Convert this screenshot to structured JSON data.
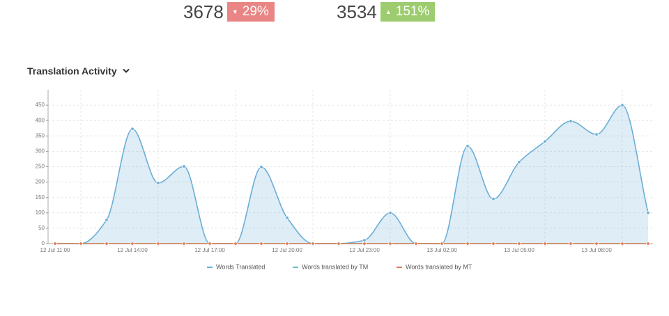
{
  "stats": [
    {
      "value": "3678",
      "change": "29%",
      "direction": "down"
    },
    {
      "value": "3534",
      "change": "151%",
      "direction": "up"
    }
  ],
  "chart_data": {
    "type": "line",
    "title": "Translation Activity",
    "categories": [
      "12 Jul 11:00",
      null,
      null,
      "12 Jul 14:00",
      null,
      null,
      "12 Jul 17:00",
      null,
      null,
      "12 Jul 20:00",
      null,
      null,
      "12 Jul 23:00",
      null,
      null,
      "13 Jul 02:00",
      null,
      null,
      "13 Jul 05:00",
      null,
      null,
      "13 Jul 08:00",
      null,
      null
    ],
    "series": [
      {
        "name": "Words Translated",
        "color": "#6aaed6",
        "area": true,
        "values": [
          0,
          0,
          77,
          373,
          197,
          251,
          0,
          0,
          249,
          84,
          0,
          0,
          11,
          100,
          0,
          0,
          317,
          145,
          265,
          332,
          398,
          355,
          450,
          100
        ]
      },
      {
        "name": "Words translated by TM",
        "color": "#5cc6c0",
        "area": false,
        "values": [
          0,
          0,
          0,
          0,
          0,
          0,
          0,
          0,
          0,
          0,
          0,
          0,
          0,
          0,
          0,
          0,
          0,
          0,
          0,
          0,
          0,
          0,
          0,
          0
        ]
      },
      {
        "name": "Words translated by MT",
        "color": "#e07b53",
        "area": false,
        "values": [
          0,
          0,
          0,
          0,
          0,
          0,
          0,
          0,
          0,
          0,
          0,
          0,
          0,
          0,
          0,
          0,
          0,
          0,
          0,
          0,
          0,
          0,
          0,
          0
        ]
      }
    ],
    "ylim": [
      0,
      500
    ],
    "yticks": [
      0,
      50,
      100,
      150,
      200,
      250,
      300,
      350,
      400,
      450
    ],
    "grid": true,
    "legend": "bottom"
  }
}
